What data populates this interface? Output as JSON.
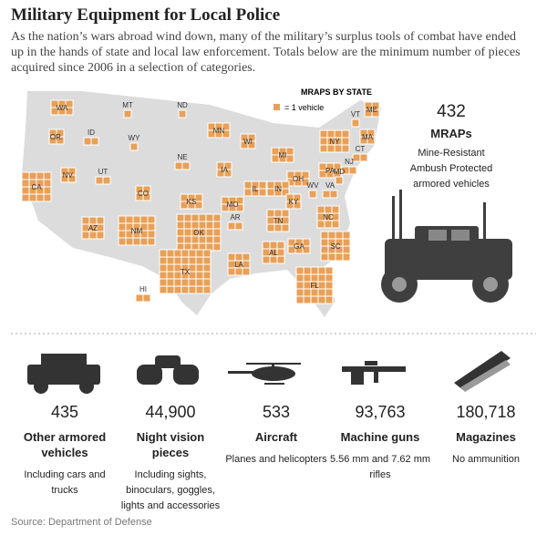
{
  "header": {
    "title": "Military Equipment for Local Police",
    "subtitle": "As the nation’s wars abroad wind down, many of the military’s surplus tools of combat have ended up in the hands of state and local law enforcement. Totals below are the minimum number of pieces acquired since 2006 in a selection of categories."
  },
  "map": {
    "legend_title": "MRAPS BY STATE",
    "legend_unit": "= 1 vehicle",
    "states": [
      {
        "label": "WA",
        "count": 6
      },
      {
        "label": "OR.",
        "count": 4
      },
      {
        "label": "ID",
        "count": 2
      },
      {
        "label": "MT",
        "count": 1
      },
      {
        "label": "ND",
        "count": 1
      },
      {
        "label": "MN",
        "count": 6
      },
      {
        "label": "WI",
        "count": 4
      },
      {
        "label": "MI",
        "count": 6
      },
      {
        "label": "NY",
        "count": 12
      },
      {
        "label": "VT",
        "count": 1
      },
      {
        "label": "ME",
        "count": 4
      },
      {
        "label": "MA",
        "count": 4
      },
      {
        "label": "CT",
        "count": 2
      },
      {
        "label": "NJ",
        "count": 2
      },
      {
        "label": "PA",
        "count": 6
      },
      {
        "label": "OH",
        "count": 6
      },
      {
        "label": "IN",
        "count": 6
      },
      {
        "label": "IL",
        "count": 6
      },
      {
        "label": "IA",
        "count": 4
      },
      {
        "label": "NE",
        "count": 2
      },
      {
        "label": "WY",
        "count": 1
      },
      {
        "label": "UT",
        "count": 2
      },
      {
        "label": "NV.",
        "count": 4
      },
      {
        "label": "CA",
        "count": 16
      },
      {
        "label": "AZ",
        "count": 9
      },
      {
        "label": "NM",
        "count": 20
      },
      {
        "label": "CO",
        "count": 4
      },
      {
        "label": "KS",
        "count": 6
      },
      {
        "label": "MO",
        "count": 6
      },
      {
        "label": "KY",
        "count": 4
      },
      {
        "label": "WV",
        "count": 1
      },
      {
        "label": "VA",
        "count": 2
      },
      {
        "label": "MD",
        "count": 1
      },
      {
        "label": "NC",
        "count": 9
      },
      {
        "label": "SC",
        "count": 16
      },
      {
        "label": "GA",
        "count": 6
      },
      {
        "label": "AL",
        "count": 9
      },
      {
        "label": "TN",
        "count": 9
      },
      {
        "label": "AR",
        "count": 2
      },
      {
        "label": "OK",
        "count": 30
      },
      {
        "label": "TX",
        "count": 42
      },
      {
        "label": "LA",
        "count": 9
      },
      {
        "label": "FL",
        "count": 25
      },
      {
        "label": "HI",
        "count": 2
      }
    ]
  },
  "mrap": {
    "value": "432",
    "label": "MRAPs",
    "description": "Mine-Resistant Ambush Protected armored vehicles"
  },
  "items": [
    {
      "value": "435",
      "label": "Other armored vehicles",
      "description": "Including cars and trucks"
    },
    {
      "value": "44,900",
      "label": "Night vision pieces",
      "description": "Including sights, binoculars, goggles, lights and accessories"
    },
    {
      "value": "533",
      "label": "Aircraft",
      "description": "Planes and helicopters"
    },
    {
      "value": "93,763",
      "label": "Machine guns",
      "description": "5.56 mm and 7.62 mm rifles"
    },
    {
      "value": "180,718",
      "label": "Magazines",
      "description": "No ammunition"
    }
  ],
  "source": "Source: Department of Defense"
}
